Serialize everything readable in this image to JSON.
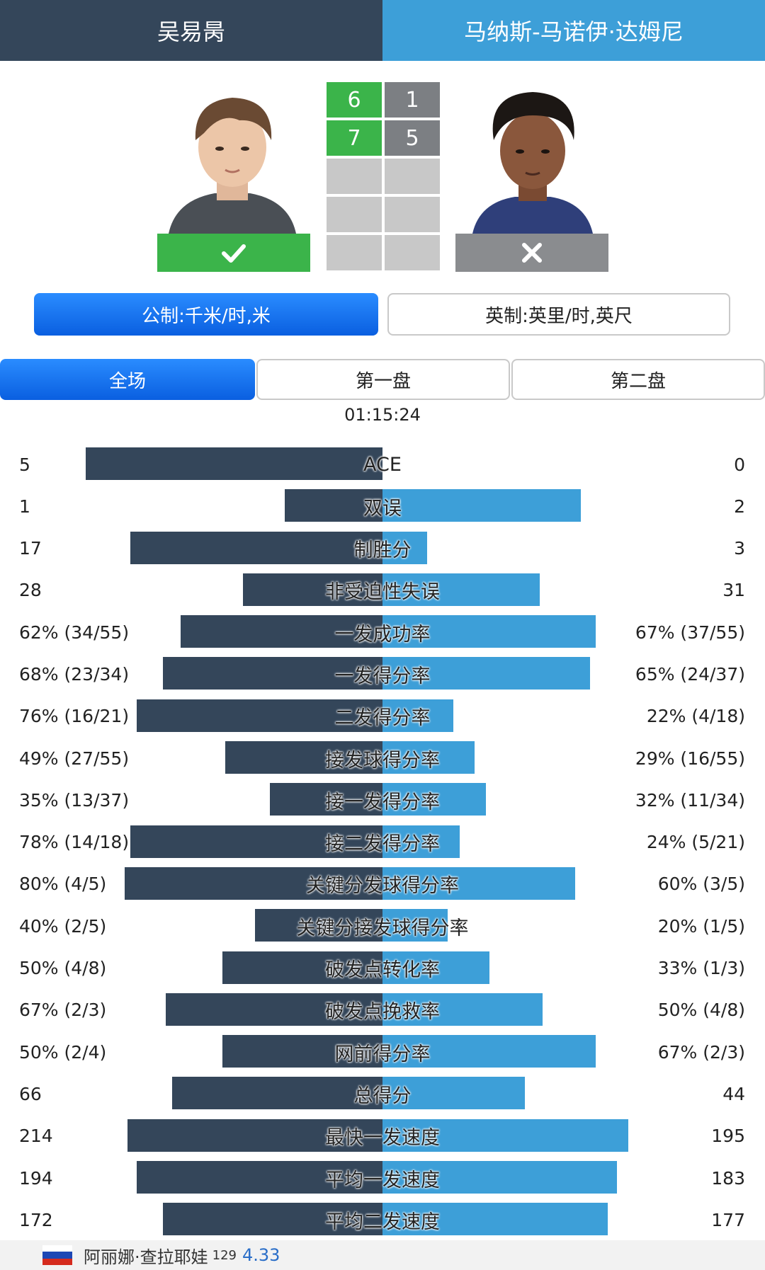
{
  "header": {
    "player1": "吴易昺",
    "player2": "马纳斯-马诺伊·达姆尼"
  },
  "result": {
    "winner_icon": "check-icon",
    "loser_icon": "cross-icon"
  },
  "scores": {
    "player1": [
      "6",
      "7",
      "",
      "",
      ""
    ],
    "player2": [
      "1",
      "5",
      "",
      "",
      ""
    ]
  },
  "units": {
    "metric": "公制:千米/时,米",
    "imperial": "英制:英里/时,英尺"
  },
  "tabs": {
    "all": "全场",
    "set1": "第一盘",
    "set2": "第二盘"
  },
  "duration": "01:15:24",
  "colors": {
    "player1": "#34465a",
    "player2": "#3d9fd8",
    "win": "#3bb44a",
    "lose": "#7c7f83"
  },
  "stats": [
    {
      "label": "ACE",
      "left": "5",
      "right": "0",
      "l": 1.0,
      "r": 0.0
    },
    {
      "label": "双误",
      "left": "1",
      "right": "2",
      "l": 0.33,
      "r": 0.67
    },
    {
      "label": "制胜分",
      "left": "17",
      "right": "3",
      "l": 0.85,
      "r": 0.15
    },
    {
      "label": "非受迫性失误",
      "left": "28",
      "right": "31",
      "l": 0.47,
      "r": 0.53
    },
    {
      "label": "一发成功率",
      "left": "62% (34/55)",
      "right": "67% (37/55)",
      "l": 0.68,
      "r": 0.72
    },
    {
      "label": "一发得分率",
      "left": "68% (23/34)",
      "right": "65% (24/37)",
      "l": 0.74,
      "r": 0.7
    },
    {
      "label": "二发得分率",
      "left": "76% (16/21)",
      "right": "22% (4/18)",
      "l": 0.83,
      "r": 0.24
    },
    {
      "label": "接发球得分率",
      "left": "49% (27/55)",
      "right": "29% (16/55)",
      "l": 0.53,
      "r": 0.31
    },
    {
      "label": "接一发得分率",
      "left": "35% (13/37)",
      "right": "32% (11/34)",
      "l": 0.38,
      "r": 0.35
    },
    {
      "label": "接二发得分率",
      "left": "78% (14/18)",
      "right": "24% (5/21)",
      "l": 0.85,
      "r": 0.26
    },
    {
      "label": "关键分发球得分率",
      "left": "80% (4/5)",
      "right": "60% (3/5)",
      "l": 0.87,
      "r": 0.65
    },
    {
      "label": "关键分接发球得分率",
      "left": "40% (2/5)",
      "right": "20% (1/5)",
      "l": 0.43,
      "r": 0.22
    },
    {
      "label": "破发点转化率",
      "left": "50% (4/8)",
      "right": "33% (1/3)",
      "l": 0.54,
      "r": 0.36
    },
    {
      "label": "破发点挽救率",
      "left": "67% (2/3)",
      "right": "50% (4/8)",
      "l": 0.73,
      "r": 0.54
    },
    {
      "label": "网前得分率",
      "left": "50% (2/4)",
      "right": "67% (2/3)",
      "l": 0.54,
      "r": 0.72
    },
    {
      "label": "总得分",
      "left": "66",
      "right": "44",
      "l": 0.71,
      "r": 0.48
    },
    {
      "label": "最快一发速度",
      "left": "214",
      "right": "195",
      "l": 0.86,
      "r": 0.83
    },
    {
      "label": "平均一发速度",
      "left": "194",
      "right": "183",
      "l": 0.83,
      "r": 0.79
    },
    {
      "label": "平均二发速度",
      "left": "172",
      "right": "177",
      "l": 0.74,
      "r": 0.76
    }
  ],
  "peek": {
    "name": "阿丽娜·查拉耶娃",
    "rank": "129",
    "odds": "4.33"
  }
}
